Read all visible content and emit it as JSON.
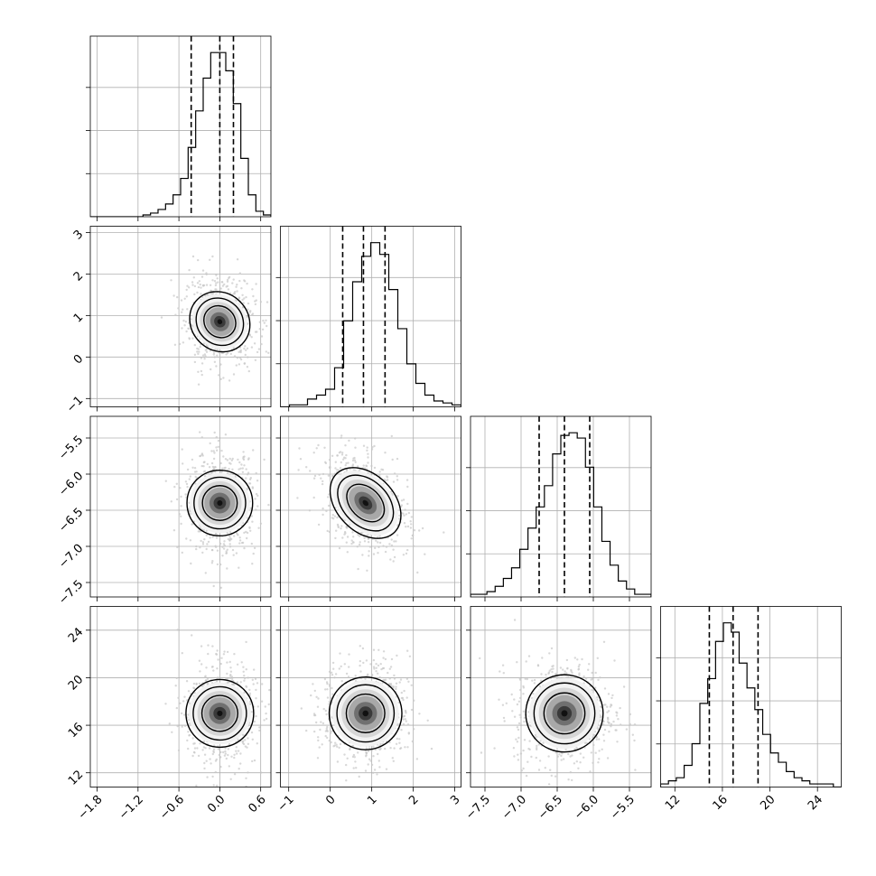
{
  "chart_data": {
    "type": "corner",
    "grid": true,
    "colors": {
      "line": "#000000",
      "grid": "#b0b0b0",
      "scatter": "#c8c8c8",
      "density_dark": "#1a1a1a"
    },
    "params": [
      {
        "mean": 0.0,
        "std": 0.25,
        "range": [
          -1.9,
          0.75
        ],
        "ticks": [
          -1.8,
          -1.2,
          -0.6,
          0.0,
          0.6
        ],
        "tick_labels": [
          "−1.8",
          "−1.2",
          "−0.6",
          "0.0",
          "0.6"
        ],
        "quantiles": [
          -0.42,
          0.0,
          0.2
        ]
      },
      {
        "mean": 0.85,
        "std": 0.5,
        "range": [
          -1.2,
          3.15
        ],
        "ticks": [
          -1,
          0,
          1,
          2,
          3
        ],
        "tick_labels": [
          "−1",
          "0",
          "1",
          "2",
          "3"
        ],
        "quantiles": [
          0.3,
          0.8,
          1.32
        ]
      },
      {
        "mean": -6.4,
        "std": 0.33,
        "range": [
          -7.7,
          -5.2
        ],
        "ticks": [
          -7.5,
          -7.0,
          -6.5,
          -6.0,
          -5.5
        ],
        "tick_labels": [
          "−7.5",
          "−7.0",
          "−6.5",
          "−6.0",
          "−5.5"
        ],
        "quantiles": [
          -6.75,
          -6.4,
          -6.05
        ]
      },
      {
        "mean": 17.0,
        "std": 2.1,
        "range": [
          10.8,
          26.0
        ],
        "ticks": [
          12,
          16,
          20,
          24
        ],
        "tick_labels": [
          "12",
          "16",
          "20",
          "24"
        ],
        "quantiles": [
          14.9,
          16.9,
          19.0
        ]
      }
    ],
    "histograms": [
      {
        "counts": [
          0,
          0,
          0,
          0,
          0,
          0,
          0,
          1,
          2,
          4,
          7,
          12,
          21,
          38,
          58,
          76,
          90,
          90,
          80,
          62,
          32,
          12,
          3,
          1
        ]
      },
      {
        "counts": [
          0,
          1,
          1,
          4,
          6,
          9,
          20,
          44,
          64,
          77,
          84,
          78,
          60,
          40,
          22,
          12,
          6,
          3,
          2,
          1
        ]
      },
      {
        "counts": [
          1,
          1,
          2,
          4,
          7,
          11,
          18,
          26,
          34,
          42,
          54,
          61,
          62,
          60,
          49,
          34,
          21,
          12,
          6,
          3,
          1,
          1
        ]
      },
      {
        "counts": [
          1,
          2,
          3,
          7,
          14,
          27,
          35,
          47,
          53,
          50,
          40,
          32,
          25,
          17,
          11,
          8,
          5,
          3,
          2,
          1,
          1,
          1,
          0
        ]
      }
    ],
    "contours": {
      "levels": [
        0.39,
        0.86,
        1.39
      ],
      "correlations": {
        "1,0": -0.1,
        "2,0": 0.0,
        "2,1": -0.35,
        "3,0": 0.0,
        "3,1": 0.0,
        "3,2": 0.0
      }
    }
  }
}
